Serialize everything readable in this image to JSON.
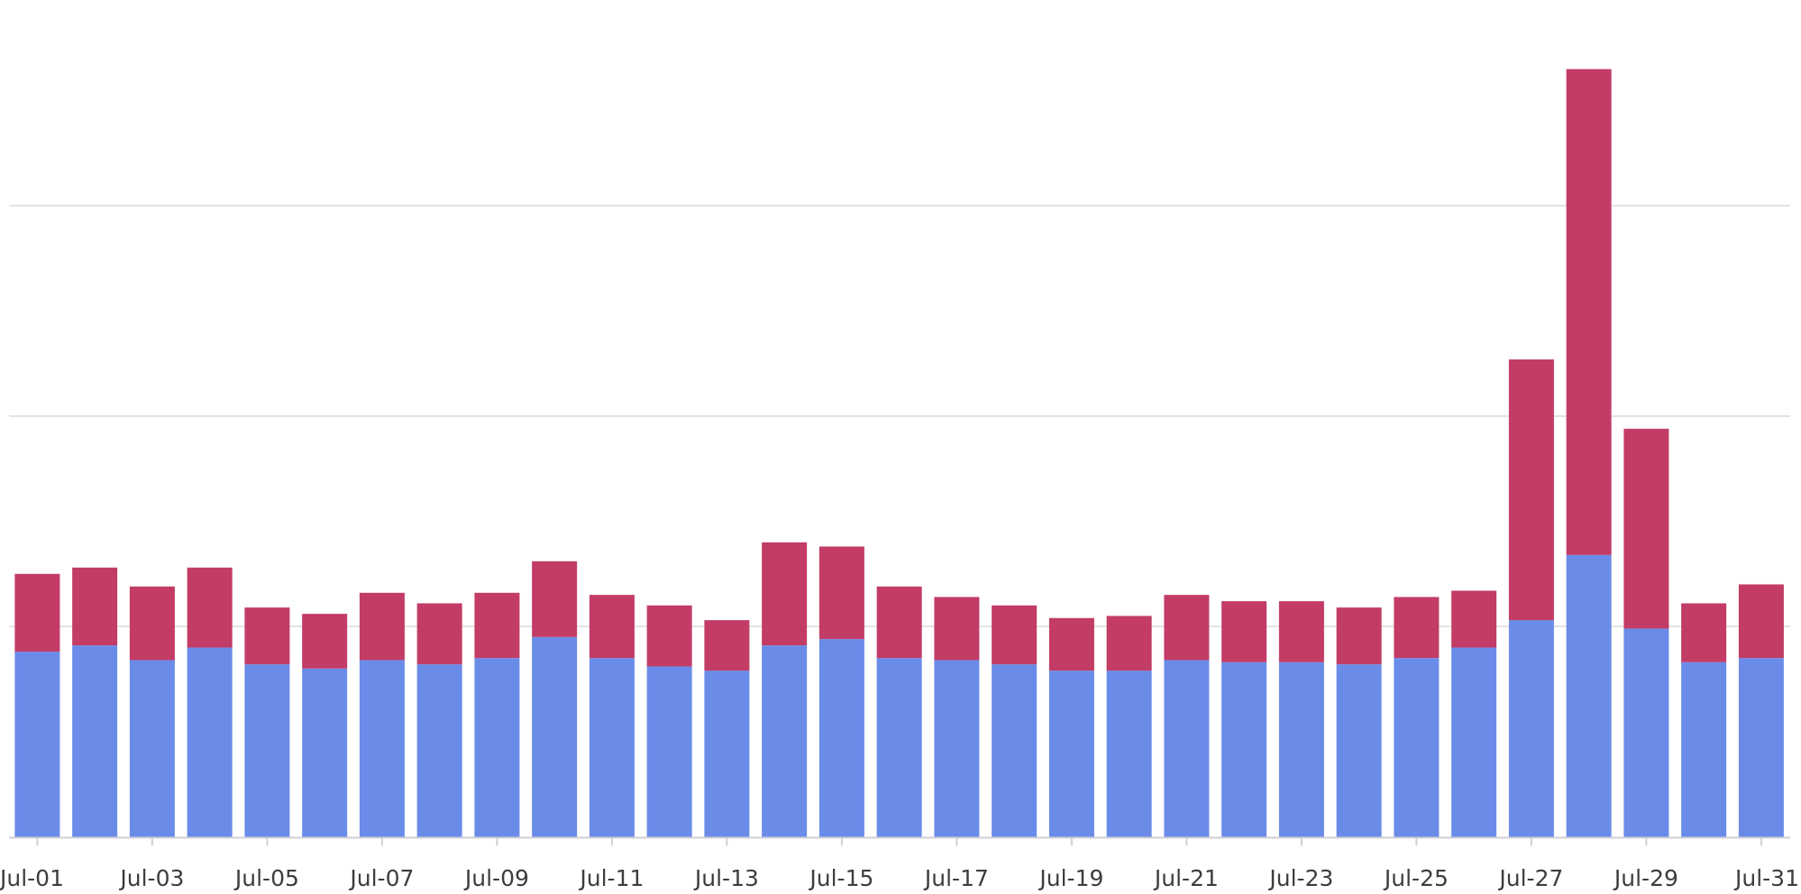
{
  "chart_data": {
    "type": "stacked_bar",
    "categories": [
      "Jul-01",
      null,
      "Jul-03",
      null,
      "Jul-05",
      null,
      "Jul-07",
      null,
      "Jul-09",
      null,
      "Jul-11",
      null,
      "Jul-13",
      null,
      "Jul-15",
      null,
      "Jul-17",
      null,
      "Jul-19",
      null,
      "Jul-21",
      null,
      "Jul-23",
      null,
      "Jul-25",
      null,
      "Jul-27",
      null,
      "Jul-29",
      null,
      "Jul-31"
    ],
    "series": [
      {
        "color": "#6b8be8",
        "values": [
          0.88,
          0.91,
          0.84,
          0.9,
          0.82,
          0.8,
          0.84,
          0.82,
          0.85,
          0.95,
          0.85,
          0.81,
          0.79,
          0.91,
          0.94,
          0.85,
          0.84,
          0.82,
          0.79,
          0.79,
          0.84,
          0.83,
          0.83,
          0.82,
          0.85,
          0.9,
          1.03,
          1.34,
          0.99,
          0.83,
          0.85
        ]
      },
      {
        "color": "#c23c65",
        "values": [
          0.37,
          0.37,
          0.35,
          0.38,
          0.27,
          0.26,
          0.32,
          0.29,
          0.31,
          0.36,
          0.3,
          0.29,
          0.24,
          0.49,
          0.44,
          0.34,
          0.3,
          0.28,
          0.25,
          0.26,
          0.31,
          0.29,
          0.29,
          0.27,
          0.29,
          0.27,
          1.24,
          2.31,
          0.95,
          0.28,
          0.35
        ]
      }
    ],
    "ylim": [
      0,
      3.97
    ],
    "grid_lines": [
      1,
      2,
      3
    ],
    "grid": true
  }
}
